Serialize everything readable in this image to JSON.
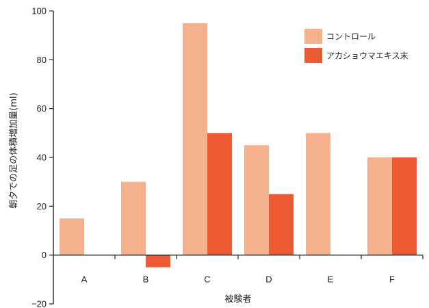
{
  "chart_data": {
    "type": "bar",
    "categories": [
      "A",
      "B",
      "C",
      "D",
      "E",
      "F"
    ],
    "series": [
      {
        "name": "コントロール",
        "color": "#f5b08e",
        "values": [
          15,
          30,
          95,
          45,
          50,
          40
        ]
      },
      {
        "name": "アカショウマエキス末",
        "color": "#eb5a33",
        "values": [
          0,
          -5,
          50,
          25,
          0,
          40
        ]
      }
    ],
    "ylim": [
      -20,
      100
    ],
    "yticks": [
      -20,
      0,
      20,
      40,
      60,
      80,
      100
    ],
    "xlabel": "被験者",
    "ylabel": "朝夕での足の体積増加量(ml)",
    "legend_position": "top-right",
    "grid": false
  }
}
